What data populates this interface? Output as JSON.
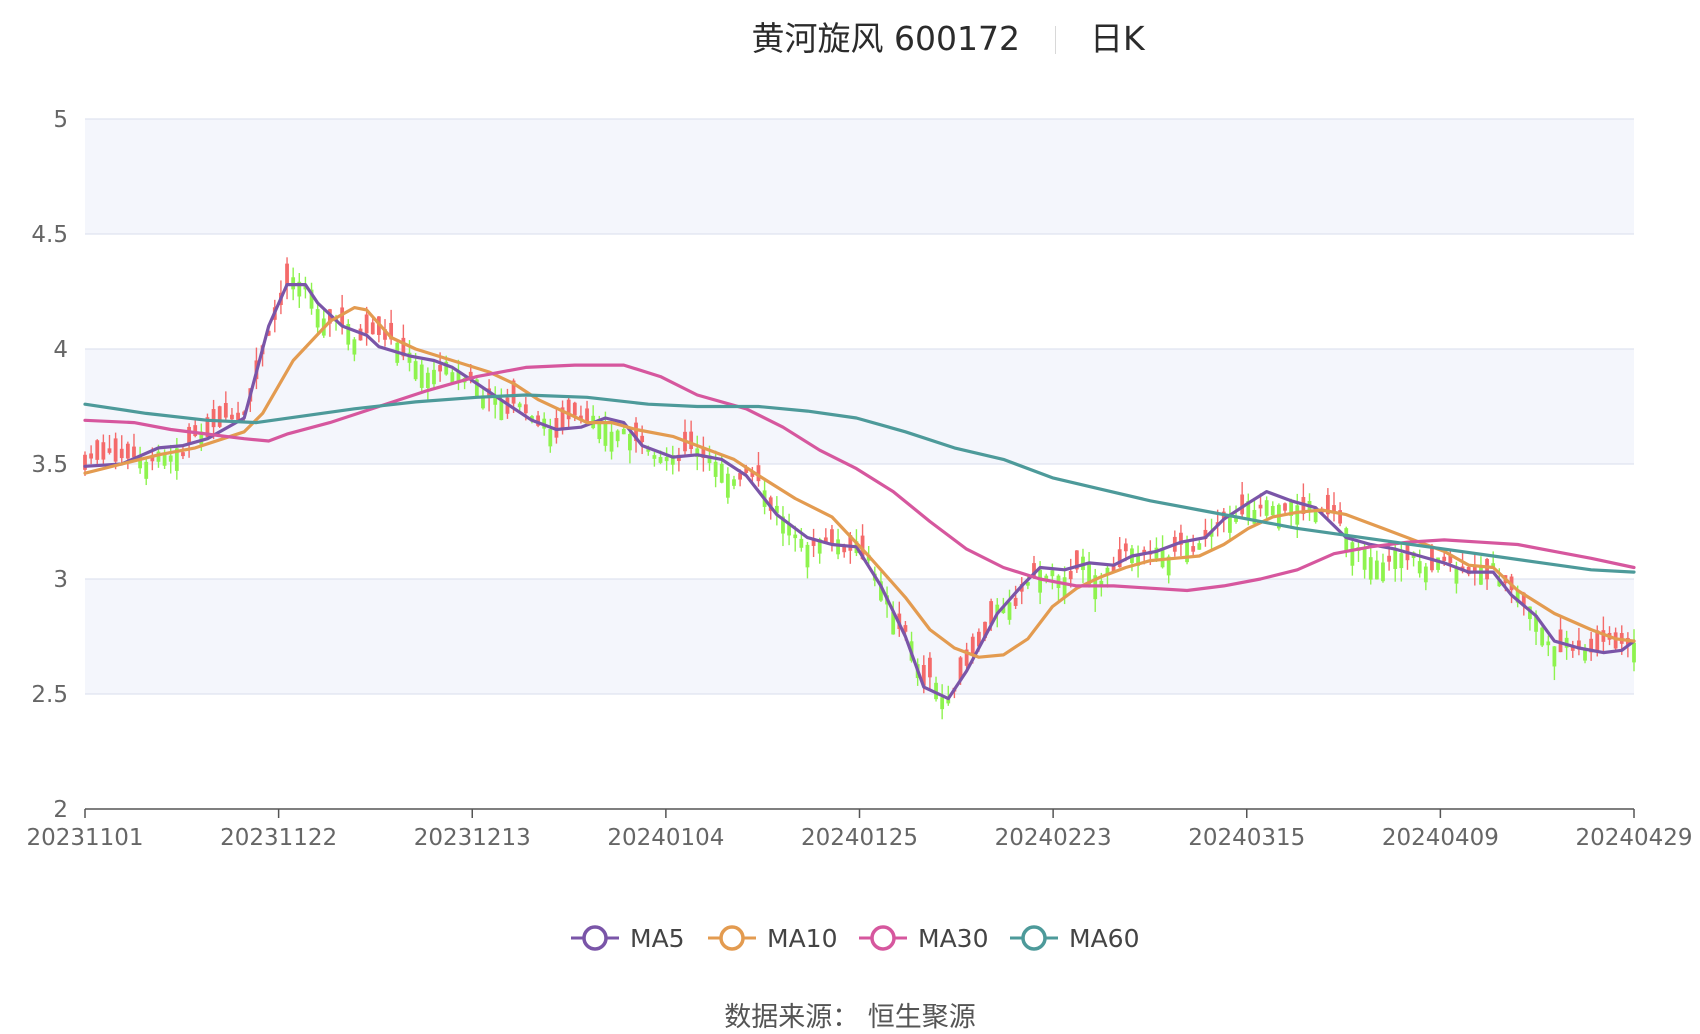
{
  "title": {
    "name": "黄河旋风 600172",
    "period": "日K"
  },
  "source": "数据来源： 恒生聚源",
  "chart_data": {
    "type": "candlestick",
    "y_ticks": [
      "2",
      "2.5",
      "3",
      "3.5",
      "4",
      "4.5",
      "5"
    ],
    "ylim": [
      2,
      5
    ],
    "x_tick_labels": [
      "20231101",
      "20231122",
      "20231213",
      "20240104",
      "20240125",
      "20240223",
      "20240315",
      "20240409",
      "20240429"
    ],
    "grid": true,
    "legend_position": "bottom",
    "colors": {
      "up": "#f46a6a",
      "down": "#8ef34e",
      "grid": "#dfe3f0",
      "band": "#f4f6fc"
    },
    "series": [
      {
        "name": "MA5",
        "color": "#7a55a8",
        "points": [
          [
            0,
            3.49
          ],
          [
            6,
            3.5
          ],
          [
            12,
            3.57
          ],
          [
            16,
            3.58
          ],
          [
            20,
            3.61
          ],
          [
            26,
            3.7
          ],
          [
            30,
            4.1
          ],
          [
            33,
            4.28
          ],
          [
            36,
            4.28
          ],
          [
            38,
            4.2
          ],
          [
            42,
            4.1
          ],
          [
            46,
            4.06
          ],
          [
            48,
            4.01
          ],
          [
            53,
            3.97
          ],
          [
            57,
            3.95
          ],
          [
            60,
            3.92
          ],
          [
            64,
            3.85
          ],
          [
            69,
            3.76
          ],
          [
            73,
            3.69
          ],
          [
            77,
            3.65
          ],
          [
            81,
            3.66
          ],
          [
            85,
            3.7
          ],
          [
            88,
            3.68
          ],
          [
            91,
            3.58
          ],
          [
            96,
            3.53
          ],
          [
            100,
            3.54
          ],
          [
            104,
            3.52
          ],
          [
            108,
            3.45
          ],
          [
            113,
            3.28
          ],
          [
            118,
            3.18
          ],
          [
            122,
            3.15
          ],
          [
            126,
            3.14
          ],
          [
            130,
            2.97
          ],
          [
            134,
            2.75
          ],
          [
            137,
            2.53
          ],
          [
            141,
            2.48
          ],
          [
            144,
            2.6
          ],
          [
            149,
            2.85
          ],
          [
            153,
            2.97
          ],
          [
            156,
            3.05
          ],
          [
            160,
            3.04
          ],
          [
            164,
            3.07
          ],
          [
            168,
            3.06
          ],
          [
            171,
            3.1
          ],
          [
            175,
            3.12
          ],
          [
            179,
            3.16
          ],
          [
            183,
            3.18
          ],
          [
            186,
            3.26
          ],
          [
            190,
            3.33
          ],
          [
            193,
            3.38
          ],
          [
            197,
            3.34
          ],
          [
            201,
            3.31
          ],
          [
            206,
            3.18
          ],
          [
            210,
            3.15
          ],
          [
            214,
            3.13
          ],
          [
            218,
            3.1
          ],
          [
            222,
            3.07
          ],
          [
            226,
            3.03
          ],
          [
            230,
            3.03
          ],
          [
            233,
            2.93
          ],
          [
            237,
            2.84
          ],
          [
            240,
            2.73
          ],
          [
            244,
            2.7
          ],
          [
            248,
            2.68
          ],
          [
            251,
            2.69
          ],
          [
            253,
            2.73
          ]
        ]
      },
      {
        "name": "MA10",
        "color": "#e39b50",
        "points": [
          [
            0,
            3.46
          ],
          [
            6,
            3.5
          ],
          [
            12,
            3.54
          ],
          [
            18,
            3.57
          ],
          [
            26,
            3.64
          ],
          [
            29,
            3.72
          ],
          [
            34,
            3.95
          ],
          [
            40,
            4.12
          ],
          [
            44,
            4.18
          ],
          [
            46,
            4.17
          ],
          [
            50,
            4.05
          ],
          [
            54,
            4.0
          ],
          [
            60,
            3.95
          ],
          [
            66,
            3.9
          ],
          [
            70,
            3.85
          ],
          [
            74,
            3.78
          ],
          [
            78,
            3.73
          ],
          [
            82,
            3.68
          ],
          [
            86,
            3.68
          ],
          [
            90,
            3.65
          ],
          [
            96,
            3.62
          ],
          [
            102,
            3.56
          ],
          [
            106,
            3.52
          ],
          [
            110,
            3.45
          ],
          [
            116,
            3.35
          ],
          [
            122,
            3.27
          ],
          [
            128,
            3.1
          ],
          [
            134,
            2.92
          ],
          [
            138,
            2.78
          ],
          [
            142,
            2.7
          ],
          [
            146,
            2.66
          ],
          [
            150,
            2.67
          ],
          [
            154,
            2.74
          ],
          [
            158,
            2.88
          ],
          [
            162,
            2.96
          ],
          [
            166,
            3.01
          ],
          [
            170,
            3.05
          ],
          [
            174,
            3.08
          ],
          [
            178,
            3.09
          ],
          [
            182,
            3.1
          ],
          [
            186,
            3.15
          ],
          [
            190,
            3.22
          ],
          [
            194,
            3.27
          ],
          [
            198,
            3.29
          ],
          [
            202,
            3.3
          ],
          [
            206,
            3.28
          ],
          [
            212,
            3.22
          ],
          [
            218,
            3.16
          ],
          [
            222,
            3.12
          ],
          [
            226,
            3.06
          ],
          [
            230,
            3.05
          ],
          [
            234,
            2.95
          ],
          [
            240,
            2.85
          ],
          [
            246,
            2.78
          ],
          [
            250,
            2.74
          ],
          [
            253,
            2.73
          ]
        ]
      },
      {
        "name": "MA30",
        "color": "#d6579e",
        "points": [
          [
            0,
            3.69
          ],
          [
            8,
            3.68
          ],
          [
            14,
            3.65
          ],
          [
            20,
            3.63
          ],
          [
            26,
            3.61
          ],
          [
            30,
            3.6
          ],
          [
            33,
            3.63
          ],
          [
            40,
            3.68
          ],
          [
            48,
            3.75
          ],
          [
            56,
            3.82
          ],
          [
            64,
            3.88
          ],
          [
            72,
            3.92
          ],
          [
            80,
            3.93
          ],
          [
            88,
            3.93
          ],
          [
            94,
            3.88
          ],
          [
            100,
            3.8
          ],
          [
            108,
            3.74
          ],
          [
            114,
            3.66
          ],
          [
            120,
            3.56
          ],
          [
            126,
            3.48
          ],
          [
            132,
            3.38
          ],
          [
            138,
            3.25
          ],
          [
            144,
            3.13
          ],
          [
            150,
            3.05
          ],
          [
            156,
            3.0
          ],
          [
            162,
            2.97
          ],
          [
            168,
            2.97
          ],
          [
            174,
            2.96
          ],
          [
            180,
            2.95
          ],
          [
            186,
            2.97
          ],
          [
            192,
            3.0
          ],
          [
            198,
            3.04
          ],
          [
            204,
            3.11
          ],
          [
            210,
            3.14
          ],
          [
            216,
            3.16
          ],
          [
            222,
            3.17
          ],
          [
            228,
            3.16
          ],
          [
            234,
            3.15
          ],
          [
            240,
            3.12
          ],
          [
            246,
            3.09
          ],
          [
            253,
            3.05
          ]
        ]
      },
      {
        "name": "MA60",
        "color": "#4d9a9a",
        "points": [
          [
            0,
            3.76
          ],
          [
            10,
            3.72
          ],
          [
            20,
            3.69
          ],
          [
            28,
            3.68
          ],
          [
            36,
            3.71
          ],
          [
            44,
            3.74
          ],
          [
            54,
            3.77
          ],
          [
            64,
            3.79
          ],
          [
            72,
            3.8
          ],
          [
            82,
            3.79
          ],
          [
            92,
            3.76
          ],
          [
            100,
            3.75
          ],
          [
            110,
            3.75
          ],
          [
            118,
            3.73
          ],
          [
            126,
            3.7
          ],
          [
            134,
            3.64
          ],
          [
            142,
            3.57
          ],
          [
            150,
            3.52
          ],
          [
            158,
            3.44
          ],
          [
            166,
            3.39
          ],
          [
            174,
            3.34
          ],
          [
            182,
            3.3
          ],
          [
            190,
            3.26
          ],
          [
            198,
            3.22
          ],
          [
            206,
            3.19
          ],
          [
            214,
            3.16
          ],
          [
            222,
            3.13
          ],
          [
            230,
            3.1
          ],
          [
            238,
            3.07
          ],
          [
            246,
            3.04
          ],
          [
            253,
            3.03
          ]
        ]
      }
    ]
  }
}
